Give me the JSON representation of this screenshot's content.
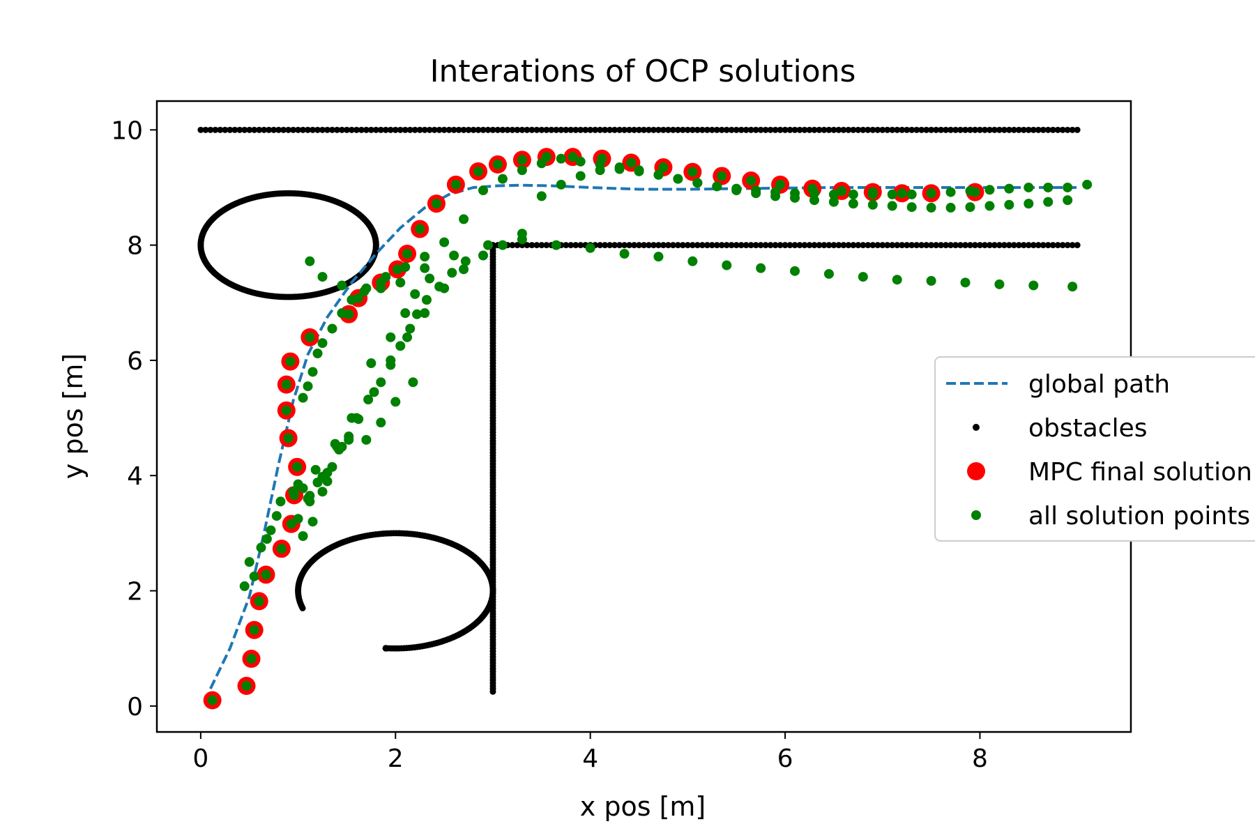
{
  "chart_data": {
    "type": "scatter",
    "title": "Interations of OCP solutions",
    "xlabel": "x pos [m]",
    "ylabel": "y pos [m]",
    "xlim": [
      -0.45,
      9.55
    ],
    "ylim": [
      -0.45,
      10.5
    ],
    "xticks": [
      0,
      2,
      4,
      6,
      8
    ],
    "yticks": [
      0,
      2,
      4,
      6,
      8,
      10
    ],
    "xtick_labels": [
      "0",
      "2",
      "4",
      "6",
      "8"
    ],
    "ytick_labels": [
      "0",
      "2",
      "4",
      "6",
      "8",
      "10"
    ],
    "grid": false,
    "legend_position": "center-right (partially outside axes)",
    "colors": {
      "global_path": "#1f77b4",
      "obstacles": "#000000",
      "mpc_final": "#ff0000",
      "all_points": "#008000"
    },
    "legend": [
      {
        "key": "global_path",
        "label": "global path",
        "marker": "dashed-line"
      },
      {
        "key": "obstacles",
        "label": "obstacles",
        "marker": "small-dot"
      },
      {
        "key": "mpc_final",
        "label": "MPC final solution",
        "marker": "large-dot"
      },
      {
        "key": "all_points",
        "label": "all solution points",
        "marker": "medium-dot"
      }
    ],
    "global_path": {
      "x": [
        0.1,
        0.3,
        0.5,
        0.65,
        0.8,
        0.95,
        1.1,
        1.3,
        1.55,
        1.8,
        2.05,
        2.3,
        2.55,
        2.8,
        3.05,
        3.3,
        3.6,
        4.0,
        4.5,
        5.0,
        5.5,
        6.0,
        6.5,
        7.0,
        7.5,
        8.0,
        8.5,
        9.0
      ],
      "y": [
        0.3,
        1.0,
        1.9,
        3.0,
        4.2,
        5.3,
        6.1,
        6.75,
        7.35,
        7.85,
        8.3,
        8.65,
        8.88,
        9.0,
        9.03,
        9.04,
        9.03,
        9.0,
        8.97,
        8.97,
        8.98,
        8.99,
        9.0,
        9.0,
        9.0,
        9.0,
        9.0,
        9.0
      ]
    },
    "obstacles": {
      "top_wall": {
        "y": 10,
        "x_from": 0,
        "x_to": 9
      },
      "lower_wall": {
        "y": 8,
        "x_from": 3,
        "x_to": 9
      },
      "vertical_wall": {
        "x": 3,
        "y_from": 0.25,
        "y_to": 8
      },
      "ellipse": {
        "cx": 0.9,
        "cy": 8,
        "rx": 0.9,
        "ry": 0.9
      },
      "arc": {
        "cx": 2,
        "cy": 2,
        "r": 1,
        "from_point": [
          1.05,
          1.7
        ],
        "to_point": [
          1.9,
          1.0
        ],
        "sweep": "counter-clockwise via top and right"
      }
    },
    "mpc_final_solution": {
      "x": [
        0.12,
        0.47,
        0.52,
        0.55,
        0.6,
        0.67,
        0.83,
        0.93,
        0.96,
        0.99,
        0.9,
        0.88,
        0.88,
        0.92,
        1.12,
        1.52,
        1.62,
        1.85,
        2.02,
        2.12,
        2.25,
        2.42,
        2.62,
        2.85,
        3.05,
        3.3,
        3.55,
        3.82,
        4.12,
        4.42,
        4.75,
        5.05,
        5.35,
        5.65,
        5.95,
        6.28,
        6.58,
        6.9,
        7.2,
        7.5,
        7.95
      ],
      "y": [
        0.1,
        0.35,
        0.82,
        1.32,
        1.82,
        2.28,
        2.73,
        3.16,
        3.66,
        4.15,
        4.65,
        5.13,
        5.58,
        5.98,
        6.4,
        6.8,
        7.08,
        7.35,
        7.58,
        7.85,
        8.28,
        8.72,
        9.05,
        9.28,
        9.4,
        9.48,
        9.53,
        9.53,
        9.5,
        9.43,
        9.35,
        9.27,
        9.2,
        9.12,
        9.05,
        8.98,
        8.94,
        8.92,
        8.9,
        8.9,
        8.92
      ]
    },
    "all_solution_points": {
      "x": [
        0.12,
        0.47,
        0.52,
        0.55,
        0.6,
        0.67,
        0.83,
        0.93,
        0.96,
        0.99,
        0.9,
        0.88,
        0.88,
        0.92,
        1.12,
        1.52,
        1.62,
        1.85,
        2.02,
        2.12,
        2.25,
        2.42,
        2.62,
        2.85,
        3.05,
        3.3,
        3.55,
        3.82,
        4.12,
        4.42,
        4.75,
        5.05,
        5.35,
        5.65,
        5.95,
        6.28,
        6.58,
        6.9,
        7.2,
        7.5,
        7.95,
        0.45,
        0.5,
        0.55,
        0.62,
        0.68,
        0.72,
        0.78,
        0.82,
        0.95,
        1.05,
        1.1,
        1.15,
        1.2,
        1.25,
        1.35,
        1.45,
        1.55,
        1.7,
        1.9,
        2.1,
        2.3,
        2.5,
        2.7,
        2.9,
        3.1,
        3.3,
        3.5,
        3.7,
        3.9,
        4.1,
        4.3,
        4.5,
        4.7,
        4.9,
        5.1,
        5.3,
        5.5,
        5.7,
        5.9,
        6.1,
        6.3,
        6.5,
        6.7,
        6.9,
        7.1,
        7.3,
        7.5,
        7.7,
        7.9,
        8.1,
        8.3,
        8.5,
        8.7,
        8.9,
        9.1,
        1.0,
        1.05,
        1.12,
        1.18,
        1.25,
        1.35,
        1.42,
        1.52,
        1.62,
        1.72,
        1.85,
        1.95,
        2.05,
        2.15,
        2.22,
        2.32,
        2.45,
        2.58,
        2.72,
        1.05,
        1.1,
        1.2,
        1.3,
        1.45,
        1.6,
        1.78,
        1.95,
        2.12,
        2.3,
        2.5,
        2.7,
        2.9,
        3.1,
        3.3,
        3.5,
        3.7,
        3.9,
        4.1,
        4.3,
        4.5,
        4.7,
        4.9,
        5.1,
        5.3,
        5.5,
        5.7,
        5.9,
        6.1,
        6.3,
        6.5,
        6.7,
        6.9,
        7.1,
        7.3,
        7.5,
        7.7,
        7.9,
        8.1,
        8.3,
        8.5,
        8.7,
        8.9,
        1.15,
        1.3,
        1.4,
        1.55,
        1.75,
        1.95,
        2.1,
        2.2,
        2.35,
        1.0,
        1.12,
        1.25,
        1.38,
        1.52,
        1.7,
        1.85,
        2.0,
        2.18,
        1.12,
        1.25,
        1.45,
        1.68,
        1.85,
        2.05,
        2.3,
        2.6,
        2.95,
        3.3,
        3.65,
        4.0,
        4.35,
        4.7,
        5.05,
        5.4,
        5.75,
        6.1,
        6.45,
        6.8,
        7.15,
        7.5,
        7.85,
        8.2,
        8.55,
        8.95
      ],
      "y": [
        0.1,
        0.35,
        0.82,
        1.32,
        1.82,
        2.28,
        2.73,
        3.16,
        3.66,
        4.15,
        4.65,
        5.13,
        5.58,
        5.98,
        6.4,
        6.8,
        7.08,
        7.35,
        7.58,
        7.85,
        8.28,
        8.72,
        9.05,
        9.28,
        9.4,
        9.48,
        9.53,
        9.53,
        9.5,
        9.43,
        9.35,
        9.27,
        9.2,
        9.12,
        9.05,
        8.98,
        8.94,
        8.92,
        8.9,
        8.9,
        8.92,
        2.08,
        2.5,
        2.25,
        2.75,
        2.9,
        3.05,
        3.3,
        3.55,
        3.72,
        5.35,
        5.55,
        5.8,
        6.12,
        6.3,
        6.55,
        6.82,
        7.05,
        7.25,
        7.45,
        7.62,
        7.8,
        8.05,
        8.45,
        8.95,
        9.15,
        9.3,
        9.42,
        9.5,
        9.45,
        9.4,
        9.35,
        9.3,
        9.22,
        9.15,
        9.08,
        9.02,
        8.98,
        8.95,
        8.92,
        8.9,
        8.9,
        8.88,
        8.88,
        8.88,
        8.88,
        8.88,
        8.9,
        8.92,
        8.94,
        8.96,
        8.98,
        9.0,
        9.0,
        9.0,
        9.05,
        3.25,
        3.78,
        3.55,
        4.1,
        3.98,
        4.15,
        4.45,
        4.62,
        4.98,
        5.32,
        5.62,
        5.92,
        6.25,
        6.55,
        6.8,
        7.05,
        7.28,
        7.52,
        7.72,
        2.95,
        3.6,
        3.88,
        4.05,
        4.5,
        5.0,
        5.45,
        6.0,
        6.4,
        6.82,
        7.25,
        7.58,
        7.82,
        8.0,
        8.2,
        8.85,
        9.05,
        9.2,
        9.3,
        9.32,
        9.28,
        9.22,
        9.15,
        9.08,
        9.02,
        8.95,
        8.9,
        8.85,
        8.82,
        8.78,
        8.75,
        8.72,
        8.7,
        8.68,
        8.66,
        8.65,
        8.65,
        8.66,
        8.68,
        8.7,
        8.72,
        8.75,
        8.78,
        3.2,
        3.9,
        4.5,
        5.0,
        5.95,
        6.4,
        6.82,
        7.15,
        7.42,
        3.85,
        3.65,
        3.72,
        4.55,
        4.68,
        4.62,
        4.92,
        5.28,
        5.62,
        7.72,
        7.45,
        7.3,
        7.2,
        7.25,
        7.35,
        7.6,
        7.82,
        8.0,
        8.1,
        8.0,
        7.95,
        7.85,
        7.8,
        7.72,
        7.65,
        7.6,
        7.55,
        7.5,
        7.45,
        7.4,
        7.38,
        7.35,
        7.32,
        7.3,
        7.28
      ]
    }
  }
}
